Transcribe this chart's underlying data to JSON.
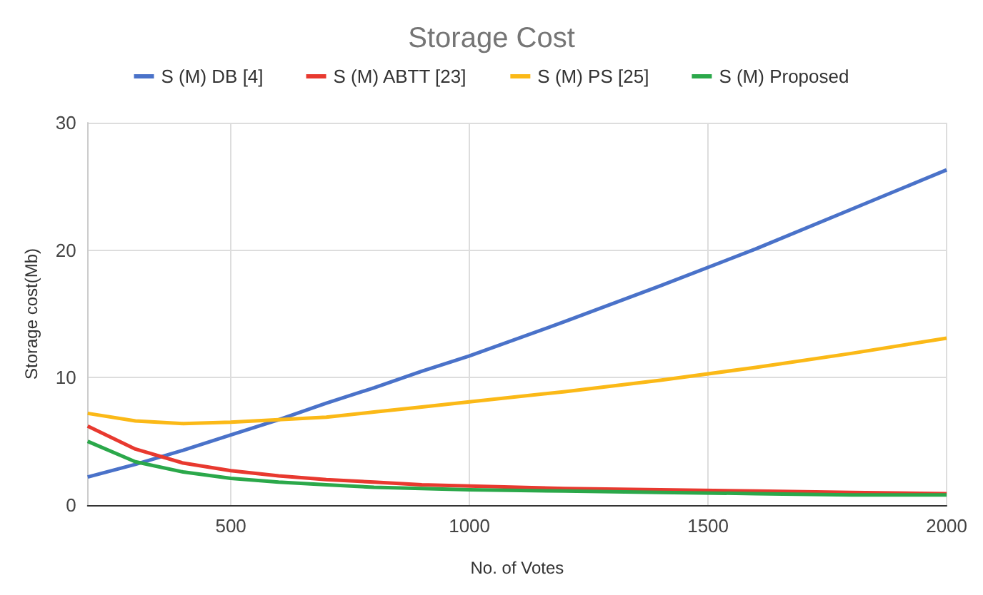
{
  "chart_data": {
    "type": "line",
    "title": "Storage Cost",
    "xlabel": "No. of Votes",
    "ylabel": "Storage cost(Mb)",
    "x": [
      200,
      300,
      400,
      500,
      600,
      700,
      800,
      900,
      1000,
      1200,
      1400,
      1600,
      1800,
      2000
    ],
    "series": [
      {
        "name": "S (M) DB [4]",
        "color": "#4a72c9",
        "values": [
          2.2,
          3.2,
          4.3,
          5.5,
          6.7,
          8.0,
          9.2,
          10.5,
          11.7,
          14.4,
          17.2,
          20.1,
          23.2,
          26.3
        ]
      },
      {
        "name": "S (M) ABTT [23]",
        "color": "#e8392f",
        "values": [
          6.2,
          4.4,
          3.3,
          2.7,
          2.3,
          2.0,
          1.8,
          1.6,
          1.5,
          1.3,
          1.2,
          1.1,
          1.0,
          0.9
        ]
      },
      {
        "name": "S (M) PS [25]",
        "color": "#fbb917",
        "values": [
          7.2,
          6.6,
          6.4,
          6.5,
          6.7,
          6.9,
          7.3,
          7.7,
          8.1,
          8.9,
          9.8,
          10.8,
          11.9,
          13.1
        ]
      },
      {
        "name": "S (M) Proposed",
        "color": "#2ba84a",
        "values": [
          5.0,
          3.4,
          2.6,
          2.1,
          1.8,
          1.6,
          1.4,
          1.3,
          1.2,
          1.1,
          1.0,
          0.9,
          0.8,
          0.8
        ]
      }
    ],
    "xlim": [
      200,
      2000
    ],
    "xticks": [
      500,
      1000,
      1500,
      2000
    ],
    "ylim": [
      0,
      30
    ],
    "yticks": [
      0,
      10,
      20,
      30
    ],
    "grid": true,
    "legend": "top",
    "marker": "none",
    "line_style": "solid"
  }
}
